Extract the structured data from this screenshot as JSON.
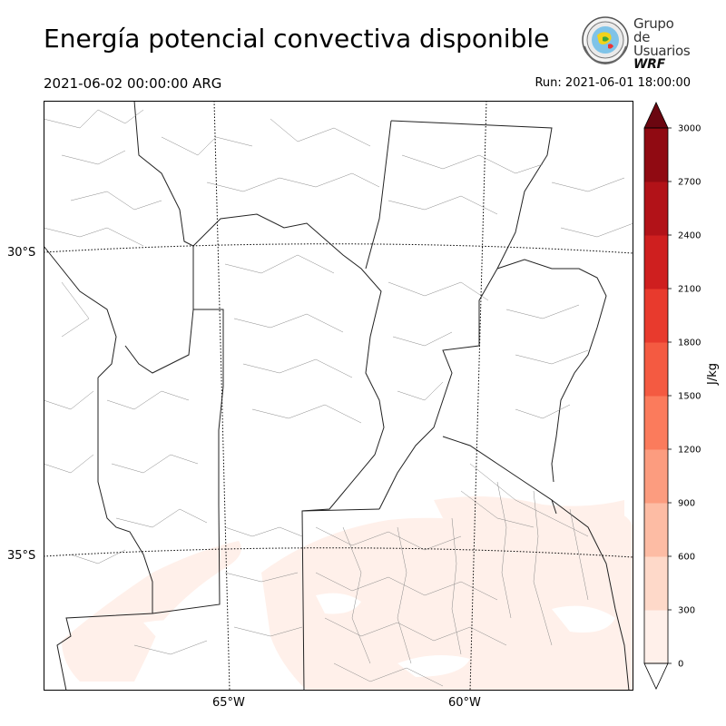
{
  "title": "Energía potencial convectiva disponible",
  "valid_time": "2021-06-02 00:00:00 ARG",
  "run_time": "Run: 2021-06-01 18:00:00",
  "logo": {
    "line1": "Grupo de",
    "line2": "Usuarios",
    "line3": "WRF",
    "icon": "globe-seal-icon"
  },
  "lat_labels": [
    "30°S",
    "35°S"
  ],
  "lon_labels": [
    "65°W",
    "60°W"
  ],
  "colorbar": {
    "unit": "J/kg",
    "ticks": [
      "0",
      "300",
      "600",
      "900",
      "1200",
      "1500",
      "1800",
      "2100",
      "2400",
      "2700",
      "3000"
    ],
    "colors": [
      "#fff0ea",
      "#fed9c9",
      "#fdbca4",
      "#fc9c7f",
      "#fb7b5c",
      "#f45a41",
      "#e83a2d",
      "#cf1f1f",
      "#b21218",
      "#900a12",
      "#6b0610"
    ],
    "extend": "max"
  },
  "chart_data": {
    "type": "heatmap",
    "variable": "CAPE",
    "unit": "J/kg",
    "levels": [
      0,
      300,
      600,
      900,
      1200,
      1500,
      1800,
      2100,
      2400,
      2700,
      3000
    ],
    "observed_max_range": [
      0,
      300
    ],
    "lat_ticks": [
      -30,
      -35
    ],
    "lon_ticks": [
      -65,
      -60
    ]
  }
}
